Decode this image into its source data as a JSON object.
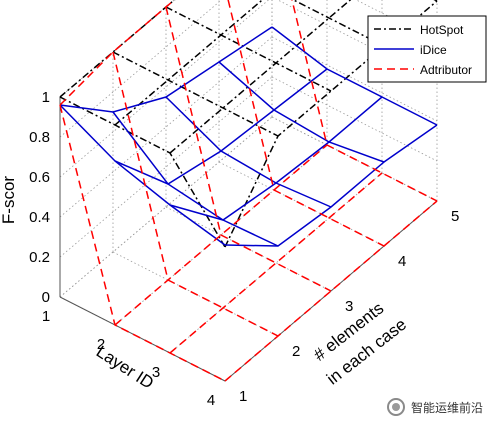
{
  "chart_data": {
    "type": "3d-mesh",
    "zlabel": "F-scor",
    "xlabel": "Layer ID",
    "ylabel_lines": [
      "# elements",
      "in each case"
    ],
    "x_ticks": [
      "1",
      "2",
      "3",
      "4"
    ],
    "y_ticks": [
      "1",
      "2",
      "3",
      "4",
      "5"
    ],
    "z_ticks": [
      "0",
      "0.2",
      "0.4",
      "0.6",
      "0.8",
      "1"
    ],
    "zlim": [
      0,
      1
    ],
    "grid": true,
    "legend_position": "top-right",
    "series": [
      {
        "name": "HotSpot",
        "color": "#000000",
        "line_style": "dash-dot",
        "z": [
          [
            1.0,
            1.0,
            1.0,
            1.0,
            1.0
          ],
          [
            1.0,
            1.0,
            1.0,
            1.0,
            1.0
          ],
          [
            1.0,
            1.0,
            1.0,
            1.0,
            1.0
          ],
          [
            0.67,
            1.0,
            1.0,
            1.0,
            1.0
          ]
        ]
      },
      {
        "name": "iDice",
        "color": "#0000cc",
        "line_style": "solid",
        "z": [
          [
            0.96,
            0.7,
            0.55,
            0.5,
            0.45
          ],
          [
            0.82,
            0.48,
            0.42,
            0.4,
            0.38
          ],
          [
            0.74,
            0.44,
            0.4,
            0.38,
            0.38
          ],
          [
            0.68,
            0.45,
            0.42,
            0.42,
            0.38
          ]
        ]
      },
      {
        "name": "Adtributor",
        "color": "#ff0000",
        "line_style": "dashed",
        "z": [
          [
            0.96,
            1.0,
            1.0,
            1.0,
            1.0
          ],
          [
            0.0,
            0.0,
            0.0,
            0.0,
            0.0
          ],
          [
            0.0,
            0.0,
            0.0,
            0.0,
            0.0
          ],
          [
            0.0,
            0.0,
            0.0,
            0.0,
            0.0
          ]
        ]
      }
    ]
  },
  "watermark": {
    "text": "智能运维前沿",
    "icon": "wechat-icon"
  }
}
